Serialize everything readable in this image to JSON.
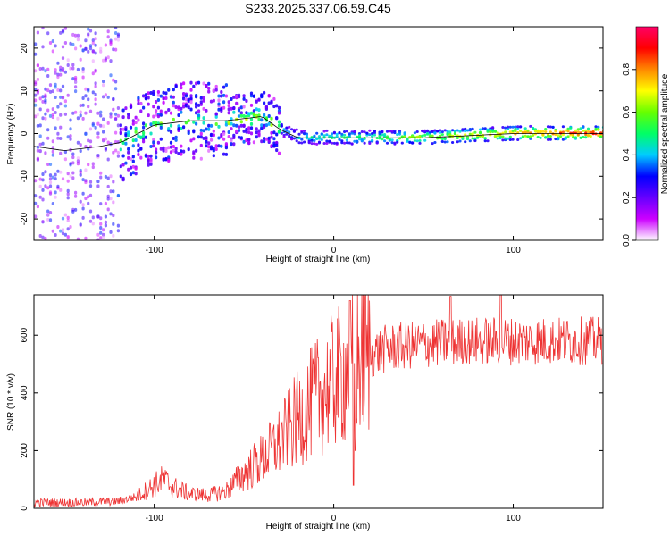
{
  "title": "S233.2025.337.06.59.C45",
  "colors": {
    "snr_line": "#ee3333",
    "ridge_line": "#000000"
  },
  "chart_data": [
    {
      "id": "spectrogram",
      "type": "heatmap",
      "xlabel": "Height of straight line (km)",
      "ylabel": "Frequency (Hz)",
      "xlim": [
        -167,
        150
      ],
      "ylim": [
        -25,
        25
      ],
      "xticks": [
        -100,
        0,
        100
      ],
      "yticks": [
        -20,
        -10,
        0,
        10,
        20
      ],
      "colorbar": {
        "label": "Normalized spectral amplitude",
        "range": [
          0,
          1
        ],
        "ticks": [
          0.0,
          0.2,
          0.4,
          0.6,
          0.8
        ],
        "tick_labels": [
          "0.0",
          "0.2",
          "0.4",
          "0.6",
          "0.8"
        ],
        "colormap": [
          "#ffffff",
          "#cc00ff",
          "#6600ff",
          "#0000ff",
          "#00ccff",
          "#00ff66",
          "#66ff00",
          "#ffff00",
          "#ff8800",
          "#ff0000",
          "#ff0066"
        ]
      },
      "ridge_frequency_hz": [
        [
          -167,
          -3
        ],
        [
          -150,
          -4
        ],
        [
          -130,
          -3
        ],
        [
          -118,
          -2
        ],
        [
          -100,
          2
        ],
        [
          -80,
          3
        ],
        [
          -60,
          3
        ],
        [
          -40,
          4
        ],
        [
          -30,
          1
        ],
        [
          -20,
          -1
        ],
        [
          -10,
          -1
        ],
        [
          0,
          -1
        ],
        [
          20,
          -1
        ],
        [
          50,
          -1
        ],
        [
          100,
          0
        ],
        [
          150,
          0
        ]
      ]
    },
    {
      "id": "snr",
      "type": "line",
      "xlabel": "Height of straight line (km)",
      "ylabel": "SNR (10 * v/v)",
      "xlim": [
        -167,
        150
      ],
      "ylim": [
        0,
        740
      ],
      "xticks": [
        -100,
        0,
        100
      ],
      "yticks": [
        0,
        200,
        400,
        600
      ],
      "series": [
        {
          "name": "SNR",
          "trend": [
            [
              -167,
              20
            ],
            [
              -140,
              20
            ],
            [
              -120,
              25
            ],
            [
              -110,
              40
            ],
            [
              -100,
              80
            ],
            [
              -95,
              100
            ],
            [
              -90,
              75
            ],
            [
              -80,
              50
            ],
            [
              -70,
              45
            ],
            [
              -60,
              60
            ],
            [
              -50,
              120
            ],
            [
              -40,
              170
            ],
            [
              -30,
              230
            ],
            [
              -20,
              310
            ],
            [
              -10,
              380
            ],
            [
              0,
              440
            ],
            [
              10,
              490
            ],
            [
              20,
              530
            ],
            [
              30,
              555
            ],
            [
              50,
              570
            ],
            [
              80,
              580
            ],
            [
              110,
              580
            ],
            [
              150,
              580
            ]
          ],
          "spikes": [
            [
              9,
              720
            ],
            [
              11,
              80
            ],
            [
              12,
              200
            ],
            [
              65,
              735
            ],
            [
              93,
              740
            ]
          ]
        }
      ]
    }
  ]
}
